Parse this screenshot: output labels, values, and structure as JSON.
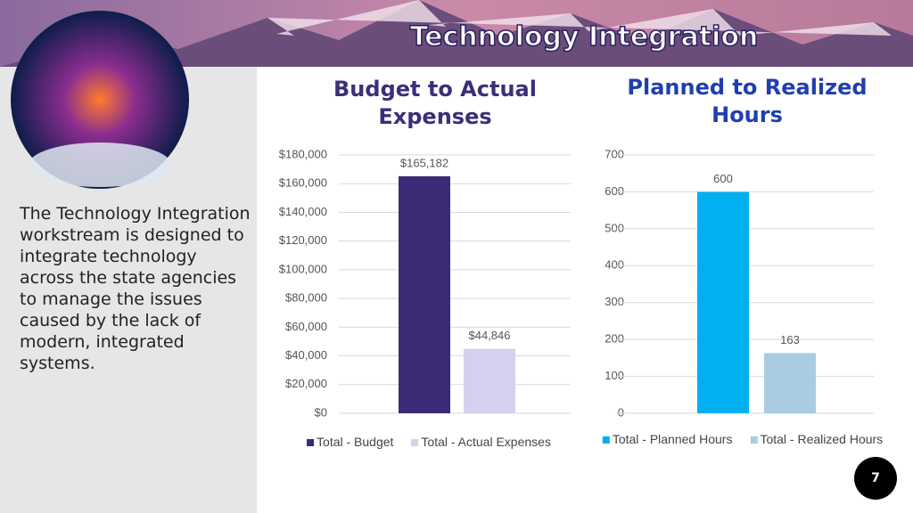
{
  "title": "Technology Integration",
  "body": "The Technology Integration workstream is designed to integrate technology across the state agencies to manage the issues caused by the lack of modern, integrated systems.",
  "page_number": "7",
  "chart_data": [
    {
      "type": "bar",
      "title": "Budget to Actual Expenses",
      "categories": [
        null
      ],
      "series": [
        {
          "name": "Total - Budget",
          "color": "#3b2a76",
          "values": [
            165182
          ],
          "value_labels": [
            "$165,182"
          ]
        },
        {
          "name": "Total - Actual Expenses",
          "color": "#d4d0ee",
          "values": [
            44846
          ],
          "value_labels": [
            "$44,846"
          ]
        }
      ],
      "ylim": [
        0,
        180000
      ],
      "yticks": [
        {
          "value": 0,
          "label": "$0"
        },
        {
          "value": 20000,
          "label": "$20,000"
        },
        {
          "value": 40000,
          "label": "$40,000"
        },
        {
          "value": 60000,
          "label": "$60,000"
        },
        {
          "value": 80000,
          "label": "$80,000"
        },
        {
          "value": 100000,
          "label": "$100,000"
        },
        {
          "value": 120000,
          "label": "$120,000"
        },
        {
          "value": 140000,
          "label": "$140,000"
        },
        {
          "value": 160000,
          "label": "$160,000"
        },
        {
          "value": 180000,
          "label": "$180,000"
        }
      ],
      "grid": true,
      "legend": "bottom"
    },
    {
      "type": "bar",
      "title": "Planned to Realized Hours",
      "categories": [
        null
      ],
      "series": [
        {
          "name": "Total - Planned Hours",
          "color": "#00b0f0",
          "values": [
            600
          ]
        },
        {
          "name": "Total - Realized Hours",
          "color": "#a9cce3",
          "values": [
            163
          ]
        }
      ],
      "ylim": [
        0,
        700
      ],
      "yticks": [
        0,
        100,
        200,
        300,
        400,
        500,
        600,
        700
      ],
      "grid": true,
      "legend": "bottom"
    }
  ]
}
